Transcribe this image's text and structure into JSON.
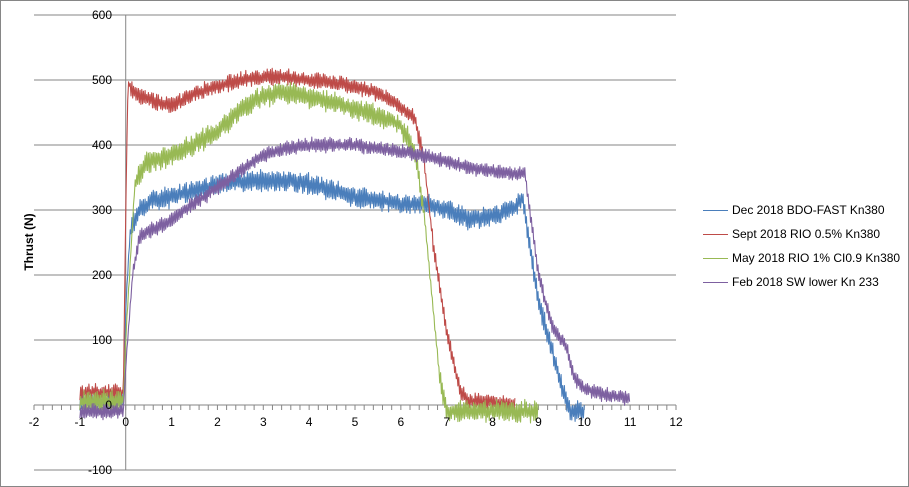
{
  "chart_data": {
    "type": "line",
    "title": "",
    "xlabel": "",
    "ylabel": "Thrust (N)",
    "xlim": [
      -2,
      12
    ],
    "ylim": [
      -100,
      600
    ],
    "x_ticks": [
      -2,
      -1,
      0,
      1,
      2,
      3,
      4,
      5,
      6,
      7,
      8,
      9,
      10,
      11,
      12
    ],
    "y_ticks": [
      -100,
      0,
      100,
      200,
      300,
      400,
      500,
      600
    ],
    "grid": {
      "horizontal": true,
      "vertical": false
    },
    "legend_position": "right",
    "series": [
      {
        "name": "Dec 2018 BDO-FAST Kn380",
        "color": "#4a7ebb",
        "noise": 28,
        "x": [
          -1.0,
          -0.05,
          0.0,
          0.1,
          0.3,
          0.6,
          1.0,
          1.5,
          2.0,
          2.5,
          3.0,
          3.5,
          4.0,
          4.5,
          5.0,
          5.5,
          6.0,
          6.5,
          7.0,
          7.5,
          8.0,
          8.5,
          8.65,
          8.8,
          9.0,
          9.2,
          9.5,
          9.7,
          10.0
        ],
        "values": [
          5,
          5,
          150,
          270,
          300,
          315,
          320,
          330,
          340,
          345,
          345,
          345,
          340,
          330,
          320,
          315,
          310,
          310,
          300,
          285,
          290,
          305,
          320,
          250,
          160,
          110,
          30,
          -10,
          -10
        ]
      },
      {
        "name": "Sept 2018 RIO 0.5% Kn380",
        "color": "#be4b48",
        "noise": 22,
        "x": [
          -1.0,
          -0.05,
          0.0,
          0.05,
          0.2,
          0.5,
          1.0,
          1.5,
          2.0,
          2.5,
          3.0,
          3.5,
          4.0,
          4.5,
          5.0,
          5.5,
          6.0,
          6.3,
          6.5,
          6.7,
          7.0,
          7.3,
          7.5,
          8.0,
          8.5
        ],
        "values": [
          20,
          20,
          300,
          495,
          480,
          470,
          460,
          480,
          490,
          500,
          505,
          505,
          500,
          495,
          490,
          480,
          460,
          440,
          380,
          250,
          110,
          20,
          5,
          5,
          0
        ]
      },
      {
        "name": "May 2018 RIO 1% CI0.9 Kn380",
        "color": "#98b954",
        "noise": 30,
        "x": [
          -1.0,
          -0.05,
          0.0,
          0.2,
          0.4,
          1.0,
          1.5,
          2.0,
          2.5,
          3.0,
          3.5,
          4.0,
          4.5,
          5.0,
          5.5,
          6.0,
          6.3,
          6.5,
          6.7,
          6.85,
          7.0,
          7.5,
          8.0,
          8.5,
          9.0
        ],
        "values": [
          5,
          5,
          100,
          340,
          370,
          385,
          400,
          420,
          455,
          475,
          480,
          475,
          465,
          455,
          445,
          430,
          390,
          300,
          150,
          40,
          -10,
          -10,
          -10,
          -10,
          -10
        ]
      },
      {
        "name": "Feb 2018 SW lower Kn 233",
        "color": "#7d60a0",
        "noise": 20,
        "x": [
          -1.0,
          -0.05,
          0.0,
          0.15,
          0.3,
          0.6,
          1.0,
          1.5,
          2.0,
          2.5,
          3.0,
          3.5,
          4.0,
          4.5,
          5.0,
          5.5,
          6.0,
          6.5,
          7.0,
          7.5,
          8.0,
          8.5,
          8.7,
          8.85,
          9.0,
          9.3,
          9.6,
          9.8,
          10.0,
          10.5,
          11.0
        ],
        "values": [
          -10,
          -10,
          60,
          200,
          260,
          270,
          285,
          310,
          335,
          360,
          385,
          395,
          400,
          400,
          400,
          395,
          390,
          385,
          375,
          365,
          360,
          355,
          360,
          280,
          200,
          120,
          90,
          40,
          25,
          15,
          10
        ]
      }
    ]
  }
}
